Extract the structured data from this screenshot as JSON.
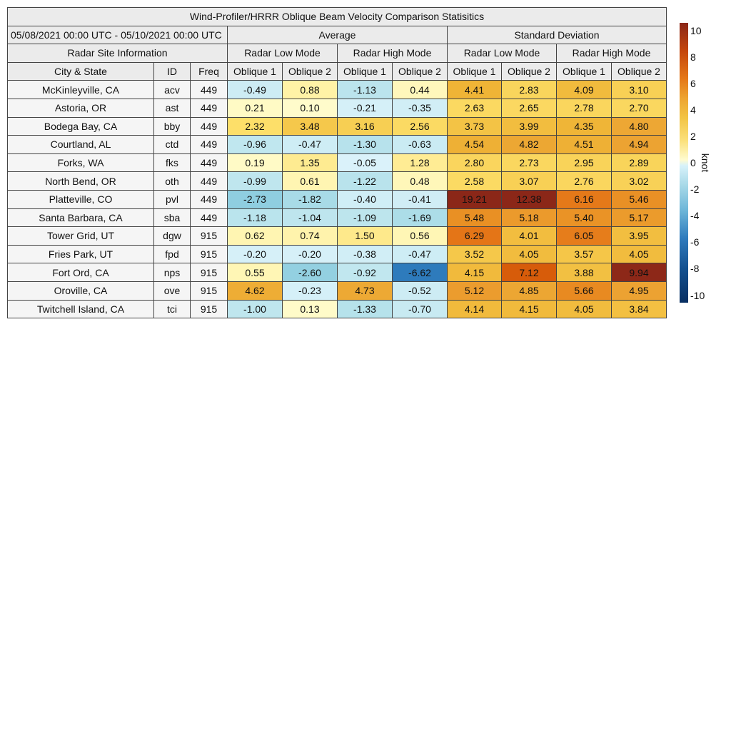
{
  "title": "Wind-Profiler/HRRR Oblique Beam Velocity Comparison Statisitics",
  "date_range": "05/08/2021 00:00 UTC - 05/10/2021 00:00 UTC",
  "groups": {
    "average": "Average",
    "std": "Standard Deviation",
    "site_info": "Radar Site Information"
  },
  "modes": [
    "Radar Low Mode",
    "Radar High Mode",
    "Radar Low Mode",
    "Radar High Mode"
  ],
  "columns": [
    "City & State",
    "ID",
    "Freq",
    "Oblique 1",
    "Oblique 2",
    "Oblique 1",
    "Oblique 2",
    "Oblique 1",
    "Oblique 2",
    "Oblique 1",
    "Oblique 2"
  ],
  "colorbar": {
    "label": "knot",
    "ticks": [
      "10",
      "8",
      "6",
      "4",
      "2",
      "0",
      "-2",
      "-4",
      "-6",
      "-8",
      "-10"
    ],
    "range": [
      -10,
      10
    ]
  },
  "chart_data": {
    "type": "table",
    "title": "Wind-Profiler/HRRR Oblique Beam Velocity Comparison Statisitics",
    "rows": [
      {
        "city": "McKinleyville, CA",
        "id": "acv",
        "freq": "449",
        "values": [
          "-0.49",
          "0.88",
          "-1.13",
          "0.44",
          "4.41",
          "2.83",
          "4.09",
          "3.10"
        ]
      },
      {
        "city": "Astoria, OR",
        "id": "ast",
        "freq": "449",
        "values": [
          "0.21",
          "0.10",
          "-0.21",
          "-0.35",
          "2.63",
          "2.65",
          "2.78",
          "2.70"
        ]
      },
      {
        "city": "Bodega Bay, CA",
        "id": "bby",
        "freq": "449",
        "values": [
          "2.32",
          "3.48",
          "3.16",
          "2.56",
          "3.73",
          "3.99",
          "4.35",
          "4.80"
        ]
      },
      {
        "city": "Courtland, AL",
        "id": "ctd",
        "freq": "449",
        "values": [
          "-0.96",
          "-0.47",
          "-1.30",
          "-0.63",
          "4.54",
          "4.82",
          "4.51",
          "4.94"
        ]
      },
      {
        "city": "Forks, WA",
        "id": "fks",
        "freq": "449",
        "values": [
          "0.19",
          "1.35",
          "-0.05",
          "1.28",
          "2.80",
          "2.73",
          "2.95",
          "2.89"
        ]
      },
      {
        "city": "North Bend, OR",
        "id": "oth",
        "freq": "449",
        "values": [
          "-0.99",
          "0.61",
          "-1.22",
          "0.48",
          "2.58",
          "3.07",
          "2.76",
          "3.02"
        ]
      },
      {
        "city": "Platteville, CO",
        "id": "pvl",
        "freq": "449",
        "values": [
          "-2.73",
          "-1.82",
          "-0.40",
          "-0.41",
          "19.21",
          "12.38",
          "6.16",
          "5.46"
        ]
      },
      {
        "city": "Santa Barbara, CA",
        "id": "sba",
        "freq": "449",
        "values": [
          "-1.18",
          "-1.04",
          "-1.09",
          "-1.69",
          "5.48",
          "5.18",
          "5.40",
          "5.17"
        ]
      },
      {
        "city": "Tower Grid, UT",
        "id": "dgw",
        "freq": "915",
        "values": [
          "0.62",
          "0.74",
          "1.50",
          "0.56",
          "6.29",
          "4.01",
          "6.05",
          "3.95"
        ]
      },
      {
        "city": "Fries Park, UT",
        "id": "fpd",
        "freq": "915",
        "values": [
          "-0.20",
          "-0.20",
          "-0.38",
          "-0.47",
          "3.52",
          "4.05",
          "3.57",
          "4.05"
        ]
      },
      {
        "city": "Fort Ord, CA",
        "id": "nps",
        "freq": "915",
        "values": [
          "0.55",
          "-2.60",
          "-0.92",
          "-6.62",
          "4.15",
          "7.12",
          "3.88",
          "9.94"
        ]
      },
      {
        "city": "Oroville, CA",
        "id": "ove",
        "freq": "915",
        "values": [
          "4.62",
          "-0.23",
          "4.73",
          "-0.52",
          "5.12",
          "4.85",
          "5.66",
          "4.95"
        ]
      },
      {
        "city": "Twitchell Island, CA",
        "id": "tci",
        "freq": "915",
        "values": [
          "-1.00",
          "0.13",
          "-1.33",
          "-0.70",
          "4.14",
          "4.15",
          "4.05",
          "3.84"
        ]
      }
    ]
  }
}
